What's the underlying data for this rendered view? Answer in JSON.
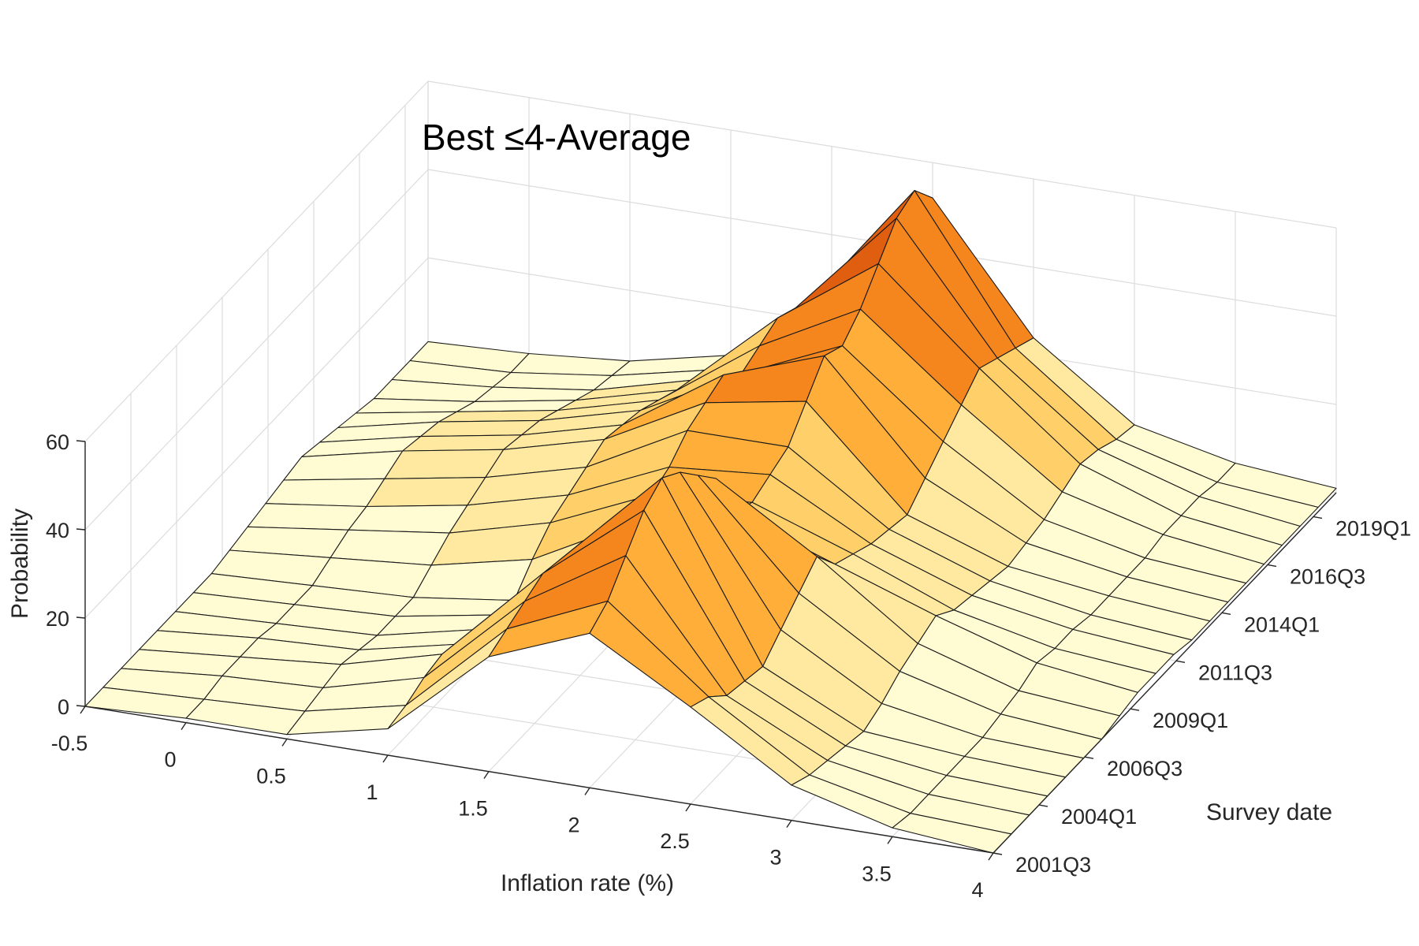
{
  "chart_data": {
    "type": "surface",
    "title": "Best ≤4-Average",
    "xlabel": "Inflation rate (%)",
    "ylabel": "Survey date",
    "zlabel": "Probability",
    "x_ticks": [
      "-0.5",
      "0",
      "0.5",
      "1",
      "1.5",
      "2",
      "2.5",
      "3",
      "3.5",
      "4"
    ],
    "x_values": [
      -0.5,
      0,
      0.5,
      1,
      1.5,
      2,
      2.5,
      3,
      3.5,
      4
    ],
    "y_ticks": [
      "2001Q3",
      "2004Q1",
      "2006Q3",
      "2009Q1",
      "2011Q3",
      "2014Q1",
      "2016Q3",
      "2019Q1"
    ],
    "z_ticks": [
      "0",
      "20",
      "40",
      "60"
    ],
    "xlim": [
      -0.5,
      4
    ],
    "ylim": [
      "2001Q3",
      "2020Q2"
    ],
    "zlim": [
      0,
      60
    ],
    "grid": true,
    "colormap": [
      "#fffbd2",
      "#ffe9a0",
      "#ffd06a",
      "#ffae3a",
      "#f5861e",
      "#df5e0f",
      "#a83206"
    ],
    "surface": {
      "x": [
        -0.5,
        0,
        0.5,
        1,
        1.5,
        2,
        2.5,
        3,
        3.5,
        4
      ],
      "y": [
        "2001Q3",
        "2002Q3",
        "2003Q3",
        "2004Q3",
        "2005Q3",
        "2006Q3",
        "2007Q3",
        "2008Q3",
        "2009Q3",
        "2010Q3",
        "2011Q3",
        "2012Q3",
        "2013Q3",
        "2014Q3",
        "2015Q3",
        "2016Q3",
        "2017Q3",
        "2018Q3",
        "2019Q3",
        "2020Q2"
      ],
      "z": [
        [
          0,
          1,
          1,
          6,
          26,
          35,
          22,
          8,
          2,
          0
        ],
        [
          0,
          1,
          2,
          7,
          28,
          38,
          20,
          6,
          1,
          0
        ],
        [
          0,
          2,
          3,
          9,
          30,
          44,
          16,
          5,
          1,
          0
        ],
        [
          0,
          2,
          4,
          10,
          32,
          50,
          15,
          4,
          1,
          0
        ],
        [
          0,
          2,
          3,
          8,
          31,
          53,
          14,
          3,
          1,
          0
        ],
        [
          0,
          1,
          2,
          7,
          30,
          50,
          18,
          5,
          1,
          0
        ],
        [
          0,
          1,
          2,
          6,
          28,
          45,
          22,
          8,
          2,
          0
        ],
        [
          0,
          1,
          2,
          5,
          25,
          40,
          26,
          10,
          3,
          1
        ],
        [
          1,
          3,
          5,
          10,
          22,
          28,
          20,
          12,
          5,
          2
        ],
        [
          2,
          5,
          8,
          14,
          24,
          26,
          18,
          9,
          4,
          2
        ],
        [
          3,
          6,
          10,
          16,
          26,
          28,
          16,
          8,
          4,
          2
        ],
        [
          4,
          8,
          12,
          18,
          30,
          30,
          15,
          7,
          3,
          1
        ],
        [
          5,
          10,
          14,
          20,
          32,
          36,
          14,
          6,
          3,
          1
        ],
        [
          4,
          9,
          13,
          19,
          34,
          42,
          18,
          7,
          3,
          1
        ],
        [
          3,
          8,
          12,
          18,
          30,
          40,
          22,
          8,
          3,
          1
        ],
        [
          2,
          6,
          10,
          16,
          32,
          44,
          26,
          10,
          4,
          1
        ],
        [
          1,
          4,
          8,
          14,
          34,
          50,
          30,
          12,
          4,
          1
        ],
        [
          1,
          3,
          6,
          12,
          32,
          56,
          28,
          11,
          4,
          1
        ],
        [
          1,
          2,
          5,
          10,
          30,
          58,
          26,
          9,
          3,
          1
        ],
        [
          1,
          2,
          4,
          9,
          28,
          52,
          24,
          8,
          3,
          1
        ]
      ]
    }
  }
}
